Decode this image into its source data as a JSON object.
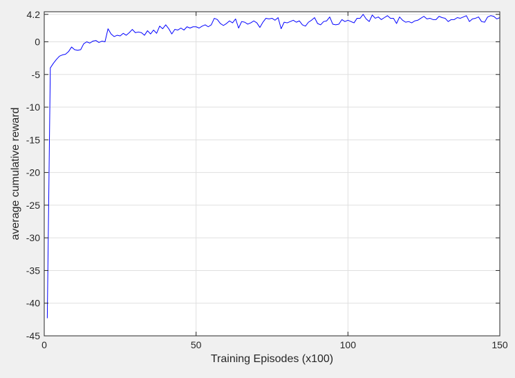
{
  "chart_data": {
    "type": "line",
    "title": "",
    "xlabel": "Training Episodes (x100)",
    "ylabel": "average cumulative reward",
    "xlim": [
      0,
      150
    ],
    "ylim": [
      -45,
      4.6
    ],
    "grid": true,
    "x_ticks": [
      0,
      50,
      100,
      150
    ],
    "x_tick_labels": [
      "0",
      "50",
      "100",
      "150"
    ],
    "y_ticks": [
      4.2,
      0,
      -5,
      -10,
      -15,
      -20,
      -25,
      -30,
      -35,
      -40,
      -45
    ],
    "y_tick_labels": [
      "4.2",
      "0",
      "-5",
      "-10",
      "-15",
      "-20",
      "-25",
      "-30",
      "-35",
      "-40",
      "-45"
    ],
    "line_color": "#0000ff",
    "series": [
      {
        "x": [
          1,
          2,
          3,
          4,
          5,
          6,
          7,
          8,
          9,
          10,
          11,
          12,
          13,
          14,
          15,
          16,
          17,
          18,
          19,
          20,
          21,
          22,
          23,
          24,
          25,
          26,
          27,
          28,
          29,
          30,
          31,
          32,
          33,
          34,
          35,
          36,
          37,
          38,
          39,
          40,
          41,
          42,
          43,
          44,
          45,
          46,
          47,
          48,
          49,
          50,
          51,
          52,
          53,
          54,
          55,
          56,
          57,
          58,
          59,
          60,
          61,
          62,
          63,
          64,
          65,
          66,
          67,
          68,
          69,
          70,
          71,
          72,
          73,
          74,
          75,
          76,
          77,
          78,
          79,
          80,
          81,
          82,
          83,
          84,
          85,
          86,
          87,
          88,
          89,
          90,
          91,
          92,
          93,
          94,
          95,
          96,
          97,
          98,
          99,
          100,
          101,
          102,
          103,
          104,
          105,
          106,
          107,
          108,
          109,
          110,
          111,
          112,
          113,
          114,
          115,
          116,
          117,
          118,
          119,
          120,
          121,
          122,
          123,
          124,
          125,
          126,
          127,
          128,
          129,
          130,
          131,
          132,
          133,
          134,
          135,
          136,
          137,
          138,
          139,
          140,
          141,
          142,
          143,
          144,
          145,
          146,
          147,
          148,
          149,
          150
        ],
        "values": [
          -42.3,
          -4.0,
          -3.3,
          -2.7,
          -2.2,
          -2.0,
          -1.9,
          -1.5,
          -0.8,
          -1.2,
          -1.3,
          -1.2,
          -0.3,
          0.0,
          -0.2,
          0.1,
          0.2,
          -0.1,
          0.1,
          0.0,
          2.0,
          1.2,
          0.8,
          1.0,
          0.9,
          1.3,
          1.0,
          1.4,
          1.9,
          1.4,
          1.5,
          1.4,
          1.0,
          1.7,
          1.2,
          1.8,
          1.3,
          2.4,
          2.0,
          2.6,
          2.0,
          1.2,
          1.9,
          1.8,
          2.1,
          1.8,
          2.3,
          2.1,
          2.3,
          2.3,
          2.1,
          2.4,
          2.6,
          2.3,
          2.6,
          3.6,
          3.4,
          2.8,
          2.5,
          2.8,
          3.2,
          2.9,
          3.5,
          2.1,
          3.1,
          3.0,
          2.7,
          2.9,
          3.2,
          2.9,
          2.2,
          3.0,
          3.6,
          3.5,
          3.6,
          3.3,
          3.7,
          2.0,
          3.0,
          2.9,
          3.1,
          3.3,
          3.0,
          3.2,
          2.6,
          2.4,
          3.0,
          3.3,
          3.7,
          2.8,
          2.6,
          3.1,
          3.2,
          3.8,
          2.7,
          2.6,
          2.7,
          3.4,
          3.1,
          3.3,
          3.1,
          2.9,
          3.6,
          3.6,
          4.2,
          3.5,
          3.1,
          4.1,
          3.6,
          3.8,
          3.4,
          3.7,
          4.0,
          3.6,
          3.6,
          2.8,
          3.8,
          3.3,
          3.0,
          3.1,
          2.9,
          3.2,
          3.3,
          3.6,
          3.9,
          3.5,
          3.6,
          3.4,
          3.4,
          3.9,
          3.7,
          3.6,
          3.1,
          3.4,
          3.4,
          3.7,
          3.6,
          3.8,
          4.0,
          3.1,
          3.5,
          3.6,
          3.8,
          3.1,
          3.0,
          3.8,
          4.0,
          3.9,
          3.5,
          3.7
        ]
      }
    ]
  }
}
